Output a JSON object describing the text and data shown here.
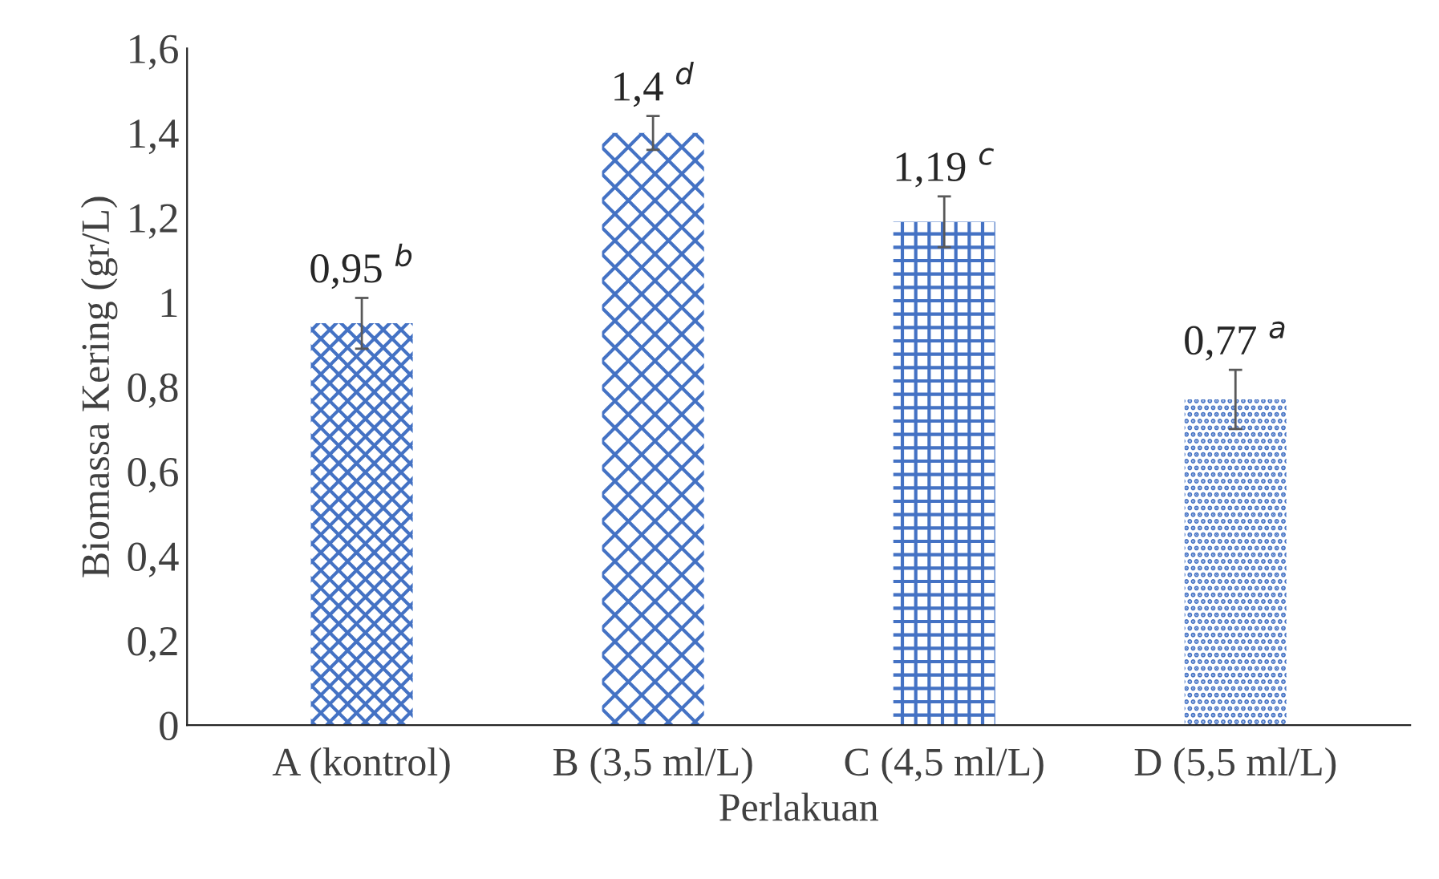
{
  "chart_data": {
    "type": "bar",
    "xlabel": "Perlakuan",
    "ylabel": "Biomassa Kering (gr/L)",
    "categories": [
      "A (kontrol)",
      "B (3,5 ml/L)",
      "C (4,5 ml/L)",
      "D (5,5 ml/L)"
    ],
    "values": [
      0.95,
      1.4,
      1.19,
      0.77
    ],
    "errors": [
      0.06,
      0.04,
      0.06,
      0.07
    ],
    "value_labels": [
      "0,95 $^{b}$",
      "1,4 $^{d}$",
      "1,19 $^{c}$",
      "0,77 $^{a}$"
    ],
    "color": "#4472c4",
    "ylim": [
      0,
      1.6
    ],
    "yticks": [
      0,
      {
        "value": 0.2,
        "label": "0,2"
      },
      {
        "value": 0.4,
        "label": "0,4"
      },
      {
        "value": 0.6,
        "label": "0,6"
      },
      {
        "value": 0.8,
        "label": "0,8"
      },
      1,
      {
        "value": 1.2,
        "label": "1,2"
      },
      {
        "value": 1.4,
        "label": "1,4"
      },
      {
        "value": 1.6,
        "label": "1,6"
      }
    ],
    "grid": false,
    "legend": false
  }
}
